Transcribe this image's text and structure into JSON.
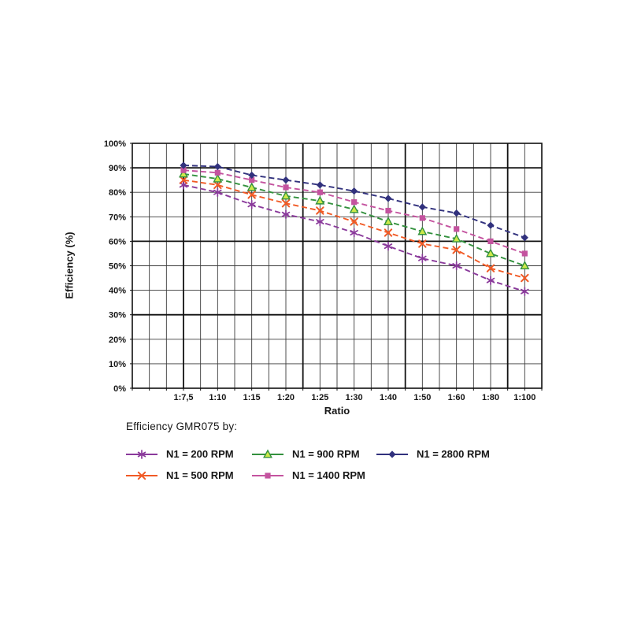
{
  "page": {
    "background": "#ffffff"
  },
  "chart_data": {
    "type": "line",
    "title": "Efficiency GMR075 by:",
    "xlabel": "Ratio",
    "ylabel": "Efficiency (%)",
    "ylim": [
      0,
      100
    ],
    "y_tick_labels": [
      "0%",
      "10%",
      "20%",
      "30%",
      "40%",
      "50%",
      "60%",
      "70%",
      "80%",
      "90%",
      "100%"
    ],
    "categories": [
      "1:7,5",
      "1:10",
      "1:15",
      "1:20",
      "1:25",
      "1:30",
      "1:40",
      "1:50",
      "1:60",
      "1:80",
      "1:100"
    ],
    "series": [
      {
        "name": "N1 = 200 RPM",
        "color": "#8a3a9b",
        "marker": "asterisk",
        "line_style": "dashed",
        "values": [
          83,
          80,
          75,
          71,
          68,
          63.5,
          58,
          53,
          50,
          44,
          39.5
        ]
      },
      {
        "name": "N1 = 500 RPM",
        "color": "#f15a25",
        "marker": "x",
        "line_style": "dashed",
        "values": [
          85,
          83,
          79,
          75.5,
          72.5,
          68,
          63.5,
          59,
          56.5,
          49,
          45
        ]
      },
      {
        "name": "N1 = 900 RPM",
        "color": "#33913e",
        "marker": "triangle",
        "marker_fill": "#cde94a",
        "line_style": "dashed",
        "values": [
          87.5,
          85.5,
          82,
          78.5,
          76.5,
          73,
          68,
          64,
          61,
          55,
          50
        ]
      },
      {
        "name": "N1 = 1400 RPM",
        "color": "#c4539f",
        "marker": "square",
        "line_style": "dashed",
        "values": [
          89,
          88,
          85,
          82,
          80,
          76,
          72.5,
          69.5,
          65,
          60,
          55
        ]
      },
      {
        "name": "N1 = 2800 RPM",
        "color": "#31317d",
        "marker": "diamond",
        "line_style": "dashed",
        "values": [
          91,
          90.5,
          87,
          85,
          83,
          80.5,
          77.5,
          74,
          71.5,
          66.5,
          61.5
        ]
      }
    ],
    "legend": {
      "position": "bottom",
      "rows": 2,
      "flow": "column"
    },
    "grid": {
      "show": true,
      "y_minor_step": 10,
      "y_major_values": [
        30,
        60,
        90
      ],
      "x_minor_divisions": 24,
      "x_tick_columns": [
        3,
        5,
        7,
        9,
        11,
        13,
        15,
        17,
        19,
        21,
        23
      ],
      "x_major_columns": [
        3,
        10,
        16,
        22
      ]
    }
  }
}
